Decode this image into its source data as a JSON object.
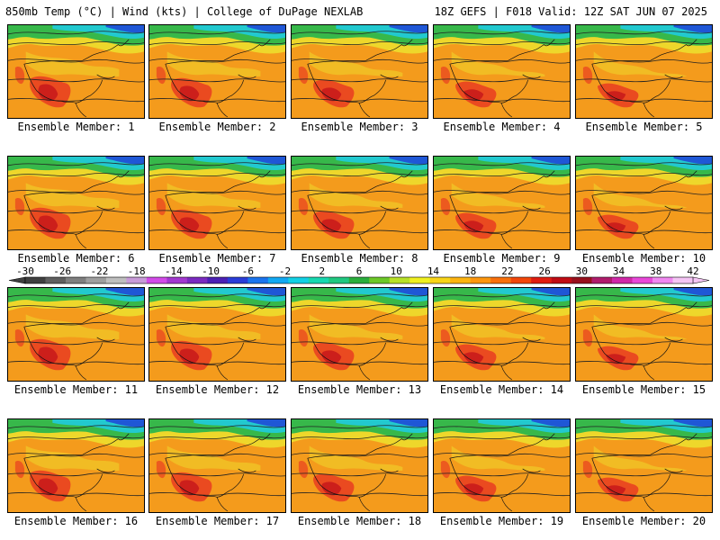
{
  "header": {
    "left_title": "850mb Temp (°C) | Wind (kts) | College of DuPage NEXLAB",
    "right_title": "18Z GEFS | F018 Valid: 12Z SAT JUN 07 2025"
  },
  "members": [
    "Ensemble Member: 1",
    "Ensemble Member: 2",
    "Ensemble Member: 3",
    "Ensemble Member: 4",
    "Ensemble Member: 5",
    "Ensemble Member: 6",
    "Ensemble Member: 7",
    "Ensemble Member: 8",
    "Ensemble Member: 9",
    "Ensemble Member: 10",
    "Ensemble Member: 11",
    "Ensemble Member: 12",
    "Ensemble Member: 13",
    "Ensemble Member: 14",
    "Ensemble Member: 15",
    "Ensemble Member: 16",
    "Ensemble Member: 17",
    "Ensemble Member: 18",
    "Ensemble Member: 19",
    "Ensemble Member: 20"
  ],
  "legend": {
    "tick_labels": [
      "-30",
      "-26",
      "-22",
      "-18",
      "-14",
      "-10",
      "-6",
      "-2",
      "2",
      "6",
      "10",
      "14",
      "18",
      "22",
      "26",
      "30",
      "34",
      "38",
      "42"
    ],
    "colors": [
      "#3f3f3f",
      "#5f5f5f",
      "#7f7f7f",
      "#9f9f9f",
      "#bfbfbf",
      "#c89bd8",
      "#d24be8",
      "#a238d0",
      "#7a2ac0",
      "#4b20b5",
      "#2a3cd8",
      "#1a74ee",
      "#12a8f2",
      "#12d0e4",
      "#18d8b0",
      "#20c880",
      "#2aae3c",
      "#6cc828",
      "#b8e028",
      "#f0f020",
      "#f8d418",
      "#fcb410",
      "#fc960e",
      "#f8700c",
      "#f2460a",
      "#e01c10",
      "#c00c14",
      "#98101c",
      "#b01c6c",
      "#d028a8",
      "#e848d8",
      "#f088f0",
      "#f4c4f4"
    ]
  },
  "map_colors": {
    "cold": "#1f57d6",
    "cyan": "#22c9cf",
    "green": "#37b84a",
    "yellow": "#eed72b",
    "orange": "#f49b1c",
    "red": "#ea4a20",
    "deep_red": "#cc1f1b"
  }
}
